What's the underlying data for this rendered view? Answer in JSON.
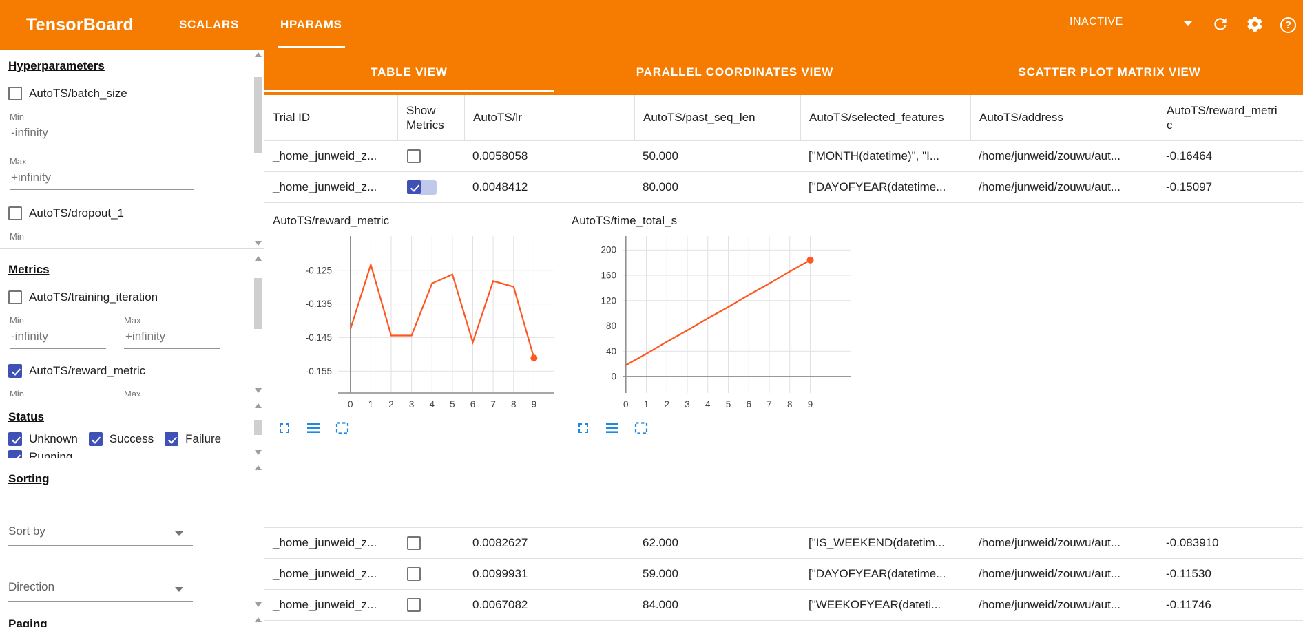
{
  "colors": {
    "header_bg": "#f57c00",
    "checkbox_checked": "#3f51b5",
    "chart_line": "#ff5722",
    "chart_icon_blue": "#1e88e5"
  },
  "header": {
    "app_title": "TensorBoard",
    "nav_tabs": [
      {
        "label": "SCALARS",
        "active": false
      },
      {
        "label": "HPARAMS",
        "active": true
      }
    ],
    "run_status_dropdown": {
      "value": "INACTIVE"
    },
    "help_glyph": "?"
  },
  "sidebar": {
    "hyperparameters": {
      "title": "Hyperparameters",
      "items": [
        {
          "label": "AutoTS/batch_size",
          "checked": false,
          "min_label": "Min",
          "min_value": "-infinity",
          "max_label": "Max",
          "max_value": "+infinity"
        },
        {
          "label": "AutoTS/dropout_1",
          "checked": false,
          "min_label": "Min"
        }
      ]
    },
    "metrics": {
      "title": "Metrics",
      "items": [
        {
          "label": "AutoTS/training_iteration",
          "checked": false,
          "min_label": "Min",
          "min_value": "-infinity",
          "max_label": "Max",
          "max_value": "+infinity"
        },
        {
          "label": "AutoTS/reward_metric",
          "checked": true,
          "min_label": "Min",
          "max_label": "Max"
        }
      ]
    },
    "status": {
      "title": "Status",
      "items": [
        {
          "label": "Unknown",
          "checked": true
        },
        {
          "label": "Success",
          "checked": true
        },
        {
          "label": "Failure",
          "checked": true
        },
        {
          "label": "Running",
          "checked": true
        }
      ]
    },
    "sorting": {
      "title": "Sorting",
      "sort_by": {
        "label": "Sort by"
      },
      "direction": {
        "label": "Direction"
      }
    },
    "paging": {
      "title": "Paging"
    }
  },
  "main": {
    "view_tabs": [
      {
        "label": "TABLE VIEW",
        "active": true
      },
      {
        "label": "PARALLEL COORDINATES VIEW",
        "active": false
      },
      {
        "label": "SCATTER PLOT MATRIX VIEW",
        "active": false
      }
    ],
    "table": {
      "columns": [
        "Trial ID",
        "Show Metrics",
        "AutoTS/lr",
        "AutoTS/past_seq_len",
        "AutoTS/selected_features",
        "AutoTS/address",
        "AutoTS/reward_metric"
      ],
      "rows": [
        {
          "trial_id": "_home_junweid_z...",
          "show_metrics": false,
          "lr": "0.0058058",
          "past_seq_len": "50.000",
          "selected_features": "[\"MONTH(datetime)\", \"I...",
          "address": "/home/junweid/zouwu/aut...",
          "reward_metric": "-0.16464"
        },
        {
          "trial_id": "_home_junweid_z...",
          "show_metrics": true,
          "lr": "0.0048412",
          "past_seq_len": "80.000",
          "selected_features": "[\"DAYOFYEAR(datetime...",
          "address": "/home/junweid/zouwu/aut...",
          "reward_metric": "-0.15097"
        },
        {
          "trial_id": "_home_junweid_z...",
          "show_metrics": false,
          "lr": "0.0082627",
          "past_seq_len": "62.000",
          "selected_features": "[\"IS_WEEKEND(datetim...",
          "address": "/home/junweid/zouwu/aut...",
          "reward_metric": "-0.083910"
        },
        {
          "trial_id": "_home_junweid_z...",
          "show_metrics": false,
          "lr": "0.0099931",
          "past_seq_len": "59.000",
          "selected_features": "[\"DAYOFYEAR(datetime...",
          "address": "/home/junweid/zouwu/aut...",
          "reward_metric": "-0.11530"
        },
        {
          "trial_id": "_home_junweid_z...",
          "show_metrics": false,
          "lr": "0.0067082",
          "past_seq_len": "84.000",
          "selected_features": "[\"WEEKOFYEAR(dateti...",
          "address": "/home/junweid/zouwu/aut...",
          "reward_metric": "-0.11746"
        }
      ]
    }
  },
  "chart_data": [
    {
      "type": "line",
      "title": "AutoTS/reward_metric",
      "x": [
        0,
        1,
        2,
        3,
        4,
        5,
        6,
        7,
        8,
        9
      ],
      "values": [
        -0.1425,
        -0.1233,
        -0.1444,
        -0.1444,
        -0.1289,
        -0.1262,
        -0.1464,
        -0.1282,
        -0.1299,
        -0.1511
      ],
      "xticks": [
        0,
        1,
        2,
        3,
        4,
        5,
        6,
        7,
        8,
        9
      ],
      "yticks": [
        -0.125,
        -0.135,
        -0.145,
        -0.155
      ],
      "ytick_labels": [
        "-0.125",
        "-0.135",
        "-0.145",
        "-0.155"
      ],
      "xlim": [
        -0.6,
        10.0
      ],
      "ylim": [
        -0.1615,
        -0.1148
      ],
      "xlabel": "",
      "ylabel": "",
      "grid": true,
      "legend": "none",
      "line_color": "#ff5722",
      "endpoint_marker": true
    },
    {
      "type": "line",
      "title": "AutoTS/time_total_s",
      "x": [
        0,
        1,
        2,
        3,
        4,
        5,
        6,
        7,
        8,
        9
      ],
      "values": [
        18,
        36,
        55,
        73,
        92,
        110,
        129,
        147,
        166,
        184
      ],
      "xticks": [
        0,
        1,
        2,
        3,
        4,
        5,
        6,
        7,
        8,
        9
      ],
      "yticks": [
        0,
        40,
        80,
        120,
        160,
        200
      ],
      "ytick_labels": [
        "0",
        "40",
        "80",
        "120",
        "160",
        "200"
      ],
      "xlim": [
        -0.16,
        11.0
      ],
      "ylim": [
        -26,
        222
      ],
      "xlabel": "",
      "ylabel": "",
      "grid": true,
      "legend": "none",
      "line_color": "#ff5722",
      "endpoint_marker": true
    }
  ]
}
